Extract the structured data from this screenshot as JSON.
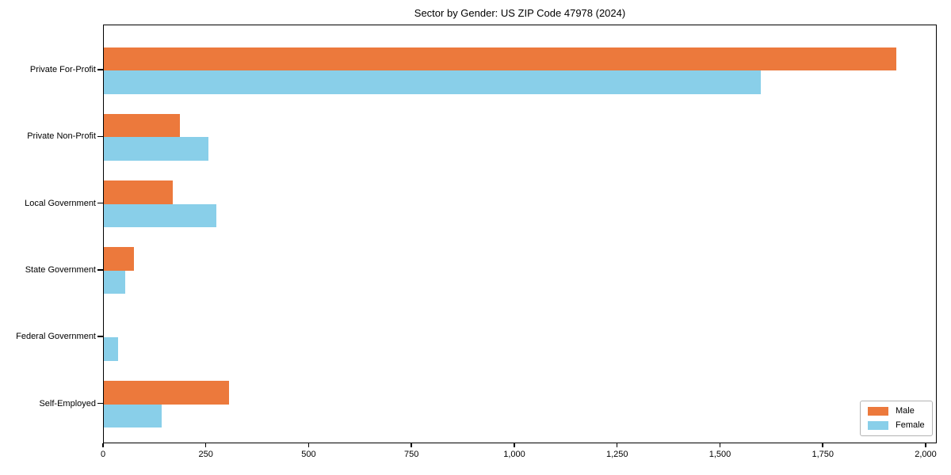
{
  "title": "Sector by Gender: US ZIP Code 47978 (2024)",
  "chart_data": {
    "type": "bar",
    "orientation": "horizontal",
    "title": "Sector by Gender: US ZIP Code 47978 (2024)",
    "xlabel": "",
    "ylabel": "",
    "categories": [
      "Private For-Profit",
      "Private Non-Profit",
      "Local Government",
      "State Government",
      "Federal Government",
      "Self-Employed"
    ],
    "series": [
      {
        "name": "Male",
        "color": "#EC793C",
        "values": [
          1930,
          185,
          168,
          73,
          0,
          305
        ]
      },
      {
        "name": "Female",
        "color": "#89CFE9",
        "values": [
          1600,
          255,
          275,
          53,
          35,
          140
        ]
      }
    ],
    "xlim": [
      0,
      2027
    ],
    "xticks": [
      0,
      250,
      500,
      750,
      1000,
      1250,
      1500,
      1750,
      2000
    ],
    "xtick_labels": [
      "0",
      "250",
      "500",
      "750",
      "1,000",
      "1,250",
      "1,500",
      "1,750",
      "2,000"
    ],
    "grid": false,
    "legend": {
      "position": "lower right",
      "entries": [
        "Male",
        "Female"
      ]
    }
  }
}
